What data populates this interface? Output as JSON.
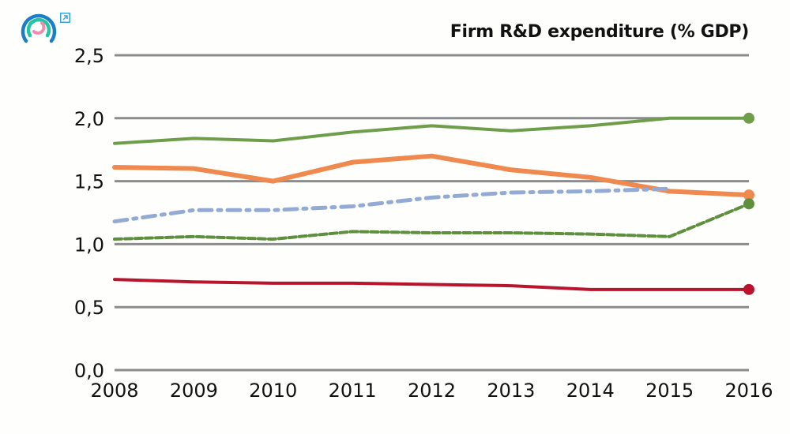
{
  "icons": {
    "logo": "concentric-ring-logo-icon",
    "expand": "external-link-icon"
  },
  "colors": {
    "logo_outer": "#1a7fc6",
    "logo_middle": "#22c4a1",
    "logo_inner": "#f08cb0",
    "expand": "#38a8d8",
    "grid": "#8a8c8e"
  },
  "chart_data": {
    "type": "line",
    "title": "Firm R&D expenditure (% GDP)",
    "xlabel": "",
    "ylabel": "",
    "x": [
      2008,
      2009,
      2010,
      2011,
      2012,
      2013,
      2014,
      2015,
      2016
    ],
    "x_tick_labels": [
      "2008",
      "2009",
      "2010",
      "2011",
      "2012",
      "2013",
      "2014",
      "2015",
      "2016"
    ],
    "ylim": [
      0,
      2.5
    ],
    "y_ticks": [
      0,
      0.5,
      1.0,
      1.5,
      2.0,
      2.5
    ],
    "y_tick_labels": [
      "0,0",
      "0,5",
      "1,0",
      "1,5",
      "2,0",
      "2,5"
    ],
    "grid": true,
    "legend": "none",
    "series": [
      {
        "name": "series-green-solid",
        "color": "#6f9e4a",
        "style": "solid",
        "end_marker": true,
        "values": [
          1.8,
          1.84,
          1.82,
          1.89,
          1.94,
          1.9,
          1.94,
          2.0,
          2.0
        ]
      },
      {
        "name": "series-orange",
        "color": "#f0894e",
        "style": "solid-thick",
        "end_marker": true,
        "values": [
          1.61,
          1.6,
          1.5,
          1.65,
          1.7,
          1.59,
          1.53,
          1.42,
          1.39
        ]
      },
      {
        "name": "series-blue-dashdot",
        "color": "#93abd4",
        "style": "dashdot",
        "end_marker": false,
        "values": [
          1.18,
          1.27,
          1.27,
          1.3,
          1.37,
          1.41,
          1.42,
          1.44,
          null
        ]
      },
      {
        "name": "series-green-dashed",
        "color": "#5e8f3c",
        "style": "dashed",
        "end_marker": true,
        "values": [
          1.04,
          1.06,
          1.04,
          1.1,
          1.09,
          1.09,
          1.08,
          1.06,
          1.32
        ]
      },
      {
        "name": "series-red",
        "color": "#b8142c",
        "style": "solid",
        "end_marker": true,
        "values": [
          0.72,
          0.7,
          0.69,
          0.69,
          0.68,
          0.67,
          0.64,
          0.64,
          0.64
        ]
      }
    ]
  }
}
